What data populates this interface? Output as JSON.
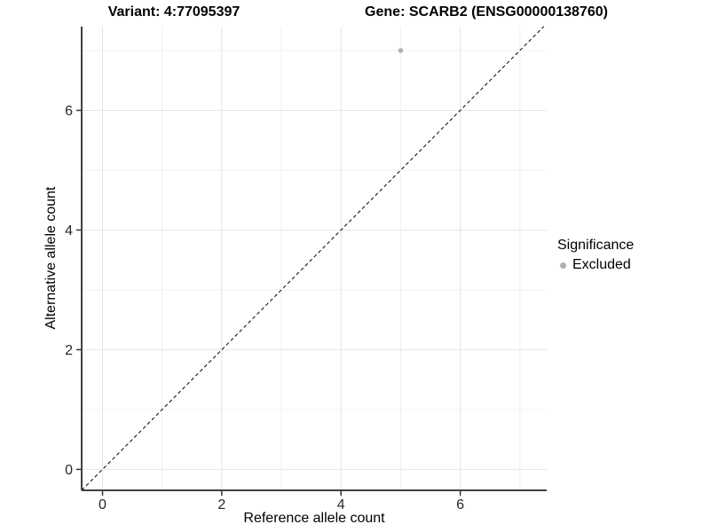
{
  "titles": {
    "variant": "Variant: 4:77095397",
    "gene": "Gene: SCARB2 (ENSG00000138760)"
  },
  "chart_data": {
    "type": "scatter",
    "xlabel": "Reference allele count",
    "ylabel": "Alternative allele count",
    "xlim": [
      -0.35,
      7.45
    ],
    "ylim": [
      -0.35,
      7.4
    ],
    "x_ticks": [
      0,
      2,
      4,
      6
    ],
    "y_ticks": [
      0,
      2,
      4,
      6
    ],
    "minor_gridlines": [
      1,
      3,
      5,
      7
    ],
    "grid": true,
    "points": [
      {
        "x": 5,
        "y": 7,
        "significance": "Excluded"
      }
    ],
    "identity_line": {
      "slope": 1,
      "intercept": 0,
      "style": "dashed",
      "color": "#000000"
    },
    "legend": {
      "position": "right",
      "title": "Significance",
      "entries": [
        {
          "label": "Excluded",
          "color": "#b0b0b0"
        }
      ]
    },
    "colors": {
      "point_excluded": "#b0b0b0",
      "grid_major": "#e4e4e4",
      "grid_minor": "#f0f0f0",
      "axis_line": "#404040",
      "tick_mark": "#333333",
      "tick_text": "#262626"
    }
  }
}
